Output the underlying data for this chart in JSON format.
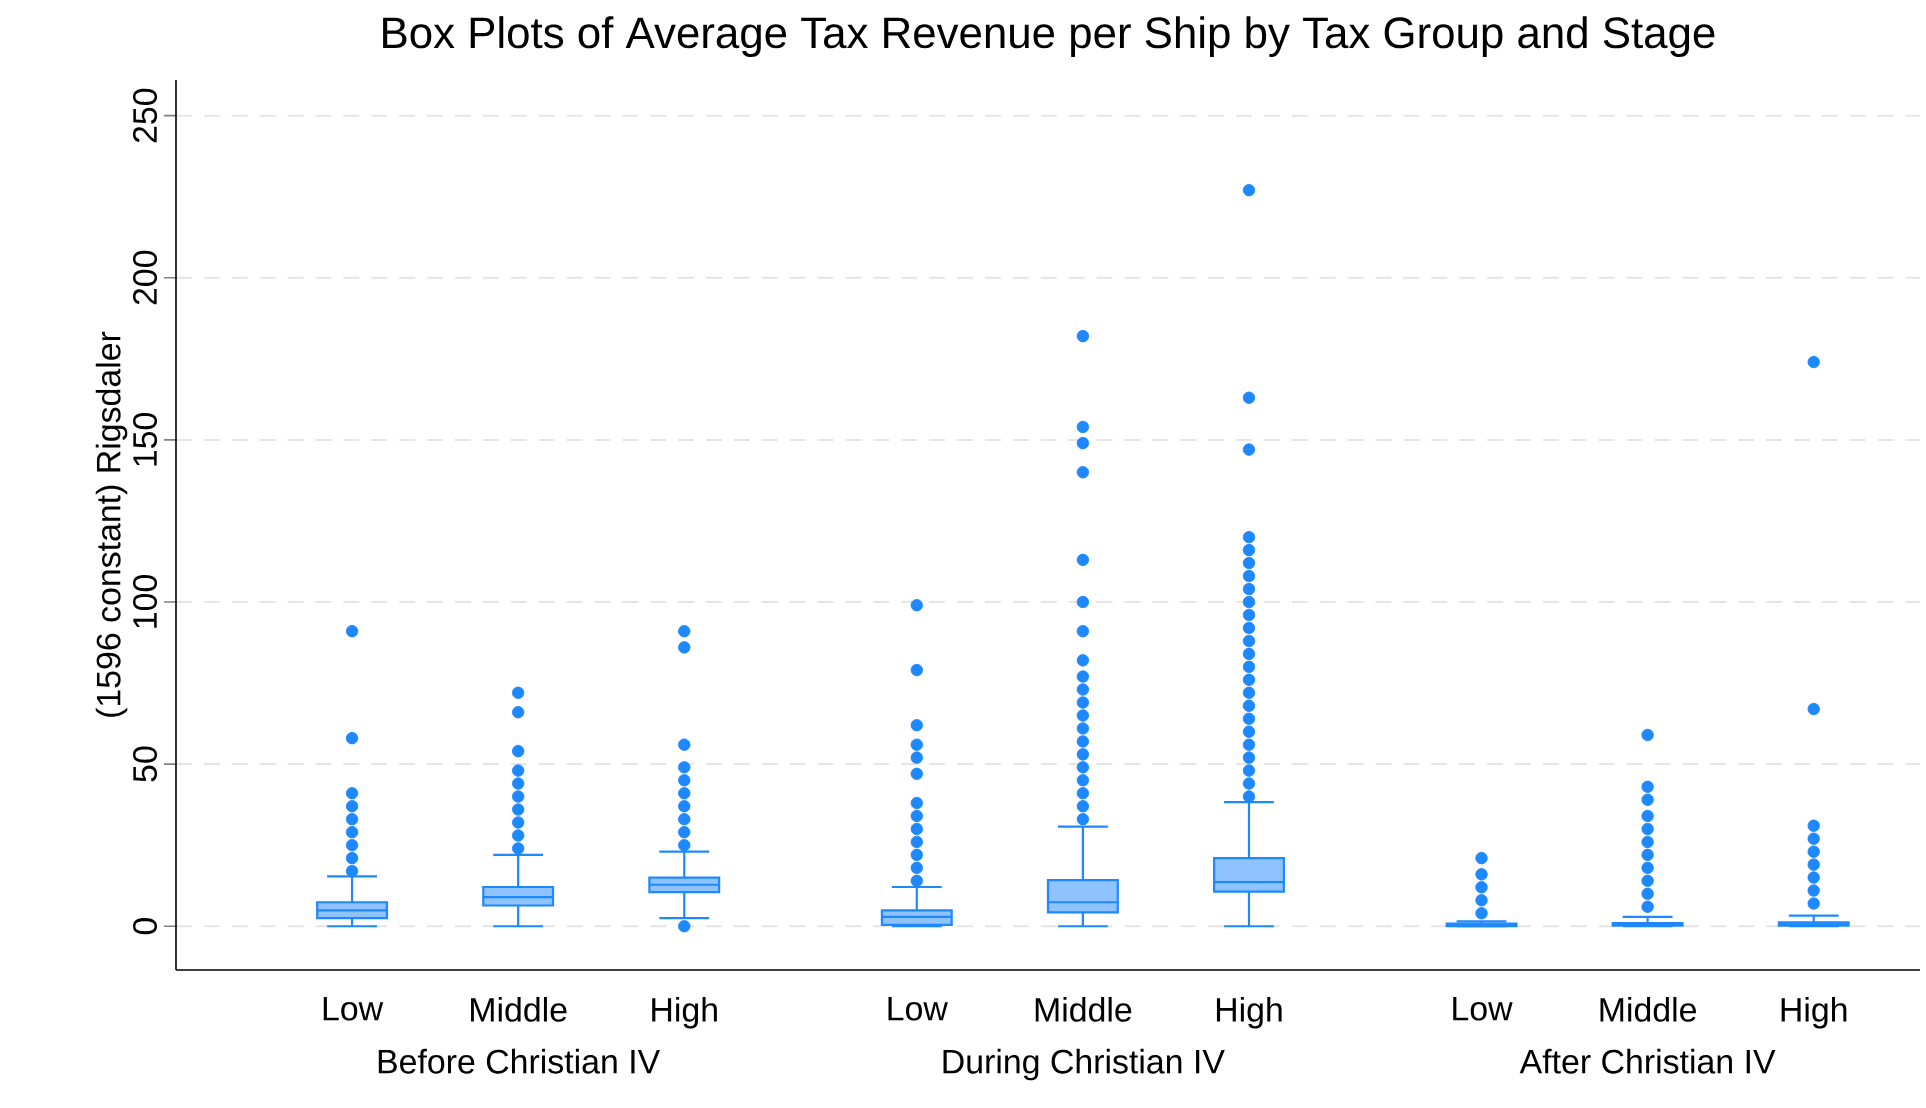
{
  "chart_data": {
    "type": "box",
    "title": "Box Plots of Average Tax Revenue per Ship by Tax Group and Stage",
    "ylabel": "(1596 constant) Rigsdaler",
    "categories": [
      "Low",
      "Middle",
      "High",
      "Low",
      "Middle",
      "High",
      "Low",
      "Middle",
      "High"
    ],
    "annotations": [
      "Before Christian IV",
      "During Christian IV",
      "After Christian IV"
    ],
    "ylim": [
      -13.5,
      261
    ],
    "yticks": [
      0,
      50,
      100,
      150,
      200,
      250
    ],
    "grid": "y",
    "marker": "circle",
    "series": [
      {
        "color": "#1e88ff",
        "boxes": [
          {
            "low": 0,
            "q1": 2.5,
            "median": 4.9,
            "q3": 7.4,
            "high": 15.4,
            "outliers": [
              17,
              21,
              25,
              29,
              33,
              37,
              41,
              58,
              91
            ]
          },
          {
            "low": 0,
            "q1": 6.4,
            "median": 9.0,
            "q3": 12.1,
            "high": 22,
            "outliers": [
              24,
              28,
              32,
              36,
              40,
              44,
              48,
              54,
              66,
              72
            ]
          },
          {
            "low": 2.5,
            "q1": 10.5,
            "median": 12.8,
            "q3": 15,
            "high": 23,
            "outliers": [
              0,
              25,
              29,
              33,
              37,
              41,
              45,
              49,
              56,
              86,
              91
            ]
          },
          {
            "low": 0,
            "q1": 0.4,
            "median": 2.9,
            "q3": 4.9,
            "high": 12.1,
            "outliers": [
              14,
              18,
              22,
              26,
              30,
              34,
              38,
              47,
              52,
              56,
              62,
              79,
              99
            ]
          },
          {
            "low": 0,
            "q1": 4.3,
            "median": 7.4,
            "q3": 14.2,
            "high": 30.7,
            "outliers": [
              33,
              37,
              41,
              45,
              49,
              53,
              57,
              61,
              65,
              69,
              73,
              77,
              82,
              91,
              100,
              113,
              140,
              149,
              154,
              182
            ]
          },
          {
            "low": 0,
            "q1": 10.7,
            "median": 13.6,
            "q3": 21,
            "high": 38.3,
            "outliers": [
              40,
              44,
              48,
              52,
              56,
              60,
              64,
              68,
              72,
              76,
              80,
              84,
              88,
              92,
              96,
              100,
              104,
              108,
              112,
              116,
              120,
              147,
              163,
              227
            ]
          },
          {
            "low": 0,
            "q1": 0,
            "median": 0.3,
            "q3": 0.8,
            "high": 1.5,
            "outliers": [
              4,
              8,
              12,
              16,
              21
            ]
          },
          {
            "low": 0,
            "q1": 0.2,
            "median": 0.5,
            "q3": 1.0,
            "high": 2.9,
            "outliers": [
              6,
              10,
              14,
              18,
              22,
              26,
              30,
              34,
              39,
              43,
              59
            ]
          },
          {
            "low": 0,
            "q1": 0.2,
            "median": 0.6,
            "q3": 1.2,
            "high": 3.3,
            "outliers": [
              7,
              11,
              15,
              19,
              23,
              27,
              31,
              67,
              174
            ]
          }
        ]
      }
    ]
  }
}
